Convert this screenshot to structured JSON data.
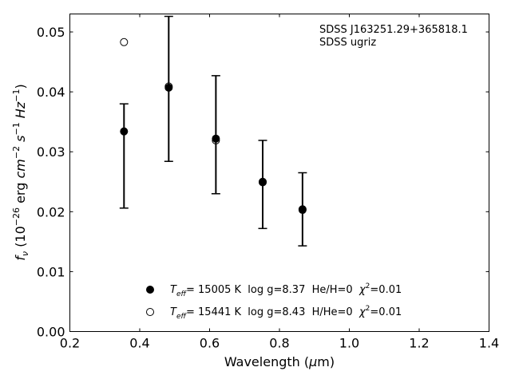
{
  "chart_data": {
    "type": "scatter",
    "xlabel_main": "Wavelength (",
    "xlabel_mu": "μ",
    "xlabel_unit": "m)",
    "ylabel_f": "f",
    "ylabel_nu": "ν",
    "ylabel_open": " (10",
    "ylabel_exp1": "−26",
    "ylabel_erg": " erg ",
    "ylabel_cm": "cm",
    "ylabel_exp2": "−2",
    "ylabel_s": " s",
    "ylabel_exp3": "−1",
    "ylabel_hz": " Hz",
    "ylabel_exp4": "−1",
    "ylabel_close": ")",
    "xlim": [
      0.2,
      1.4
    ],
    "ylim": [
      0.0,
      0.053
    ],
    "xticks": [
      "0.2",
      "0.4",
      "0.6",
      "0.8",
      "1.0",
      "1.2",
      "1.4"
    ],
    "xtick_values": [
      0.2,
      0.4,
      0.6,
      0.8,
      1.0,
      1.2,
      1.4
    ],
    "yticks": [
      "0.00",
      "0.01",
      "0.02",
      "0.03",
      "0.04",
      "0.05"
    ],
    "ytick_values": [
      0.0,
      0.01,
      0.02,
      0.03,
      0.04,
      0.05
    ],
    "annotation_line1": "SDSS J163251.29+365818.1",
    "annotation_line2": "SDSS ugriz",
    "observed": {
      "x": [
        0.355,
        0.483,
        0.618,
        0.752,
        0.866
      ],
      "y": [
        0.0334,
        0.0406,
        0.0321,
        0.0249,
        0.0203
      ],
      "yerr_low": [
        0.0206,
        0.0284,
        0.023,
        0.0172,
        0.0143
      ],
      "yerr_high": [
        0.038,
        0.0526,
        0.0427,
        0.0319,
        0.0265
      ]
    },
    "series": [
      {
        "marker": "filled",
        "x": [
          0.355,
          0.483,
          0.618,
          0.752,
          0.866
        ],
        "y": [
          0.0334,
          0.0407,
          0.0322,
          0.025,
          0.0204
        ]
      },
      {
        "marker": "open",
        "x": [
          0.355,
          0.483,
          0.618,
          0.752,
          0.866
        ],
        "y": [
          0.0483,
          0.0409,
          0.0319,
          0.0249,
          0.0203
        ]
      }
    ],
    "legend": [
      {
        "marker": "filled",
        "T": "T",
        "eff": "eff",
        "rest": "= 15005 K  log g=8.37  He/H=0  ",
        "chi": "χ",
        "two": "2",
        "chi_val": "=0.01"
      },
      {
        "marker": "open",
        "T": "T",
        "eff": "eff",
        "rest": "= 15441 K  log g=8.43  H/He=0  ",
        "chi": "χ",
        "two": "2",
        "chi_val": "=0.01"
      }
    ],
    "legend_placement": "lower-center",
    "grid": false
  }
}
